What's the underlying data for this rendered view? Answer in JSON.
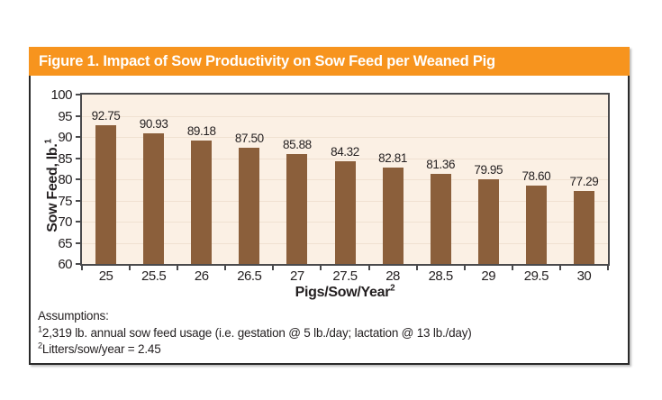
{
  "figure": {
    "title": "Figure 1. Impact of Sow Productivity on Sow Feed per Weaned Pig"
  },
  "chart_data": {
    "type": "bar",
    "title": "Figure 1. Impact of Sow Productivity on Sow Feed per Weaned Pig",
    "categories": [
      "25",
      "25.5",
      "26",
      "26.5",
      "27",
      "27.5",
      "28",
      "28.5",
      "29",
      "29.5",
      "30"
    ],
    "values": [
      92.75,
      90.93,
      89.18,
      87.5,
      85.88,
      84.32,
      82.81,
      81.36,
      79.95,
      78.6,
      77.29
    ],
    "value_labels": [
      "92.75",
      "90.93",
      "89.18",
      "87.50",
      "85.88",
      "84.32",
      "82.81",
      "81.36",
      "79.95",
      "78.60",
      "77.29"
    ],
    "xlabel": "Pigs/Sow/Year",
    "xlabel_superscript": "2",
    "ylabel": "Sow Feed, lb.",
    "ylabel_superscript": "1",
    "ylim": [
      60,
      100
    ],
    "yticks": [
      100,
      95,
      90,
      85,
      80,
      75,
      70,
      65,
      60
    ],
    "grid": true,
    "legend": "none"
  },
  "footnotes": {
    "heading": "Assumptions:",
    "items": [
      {
        "sup": "1",
        "text": "2,319 lb. annual sow feed usage (i.e. gestation @ 5 lb./day; lactation @ 13 lb./day)"
      },
      {
        "sup": "2",
        "text": "Litters/sow/year = 2.45"
      }
    ]
  },
  "colors": {
    "header_bg": "#F7941E",
    "header_text": "#FFFFFF",
    "bar": "#8B5F3B",
    "plot_bg": "#FBF0E4",
    "gridline": "#F0E1D1",
    "plot_border": "#4A4A4C",
    "figure_border": "#2A2A2A",
    "text": "#231F20"
  }
}
